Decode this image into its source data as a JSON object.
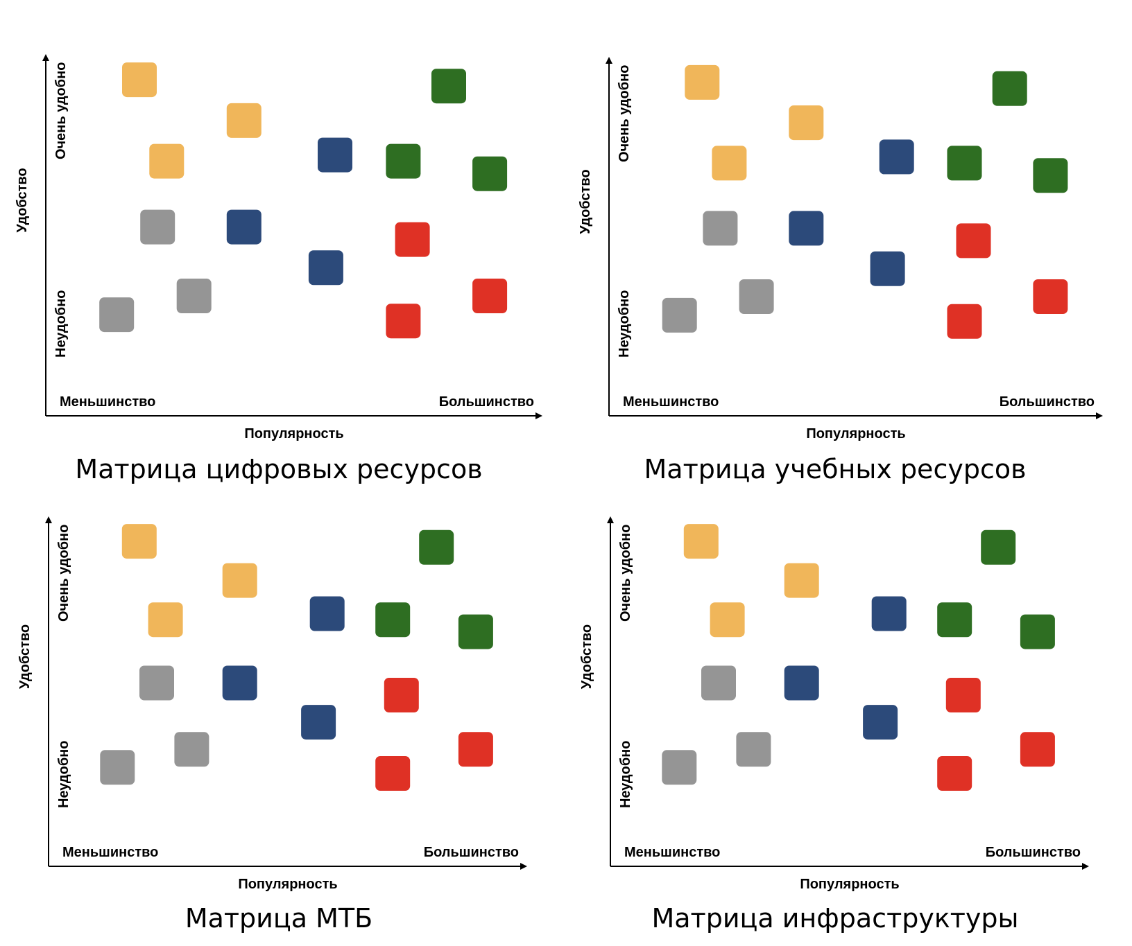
{
  "colors": {
    "yellow": "#F0B65A",
    "green": "#2E6E22",
    "blue": "#2C4A7A",
    "gray": "#959595",
    "red": "#DF3125",
    "axis": "#000000"
  },
  "chart_data": [
    {
      "type": "scatter",
      "title": "Матрица цифровых ресурсов",
      "xlabel": "Популярность",
      "ylabel": "Удобство",
      "x_low_label": "Меньшинство",
      "x_high_label": "Большинство",
      "y_low_label": "Неудобно",
      "y_high_label": "Очень удобно",
      "xlim": [
        0,
        100
      ],
      "ylim": [
        0,
        100
      ],
      "grid": false,
      "series": [
        {
          "name": "yellow",
          "color": "yellow",
          "points": [
            {
              "x": 16,
              "y": 94
            },
            {
              "x": 39,
              "y": 81
            },
            {
              "x": 22,
              "y": 68
            }
          ]
        },
        {
          "name": "green",
          "color": "green",
          "points": [
            {
              "x": 84,
              "y": 92
            },
            {
              "x": 74,
              "y": 68
            },
            {
              "x": 93,
              "y": 64
            }
          ]
        },
        {
          "name": "blue",
          "color": "blue",
          "points": [
            {
              "x": 59,
              "y": 70
            },
            {
              "x": 39,
              "y": 47
            },
            {
              "x": 57,
              "y": 34
            }
          ]
        },
        {
          "name": "gray",
          "color": "gray",
          "points": [
            {
              "x": 20,
              "y": 47
            },
            {
              "x": 28,
              "y": 25
            },
            {
              "x": 11,
              "y": 19
            }
          ]
        },
        {
          "name": "red",
          "color": "red",
          "points": [
            {
              "x": 76,
              "y": 43
            },
            {
              "x": 93,
              "y": 25
            },
            {
              "x": 74,
              "y": 17
            }
          ]
        }
      ]
    },
    {
      "type": "scatter",
      "title": "Матрица учебных ресурсов",
      "xlabel": "Популярность",
      "ylabel": "Удобство",
      "x_low_label": "Меньшинство",
      "x_high_label": "Большинство",
      "y_low_label": "Неудобно",
      "y_high_label": "Очень удобно",
      "xlim": [
        0,
        100
      ],
      "ylim": [
        0,
        100
      ],
      "grid": false,
      "series": [
        {
          "name": "yellow",
          "color": "yellow",
          "points": [
            {
              "x": 16,
              "y": 94
            },
            {
              "x": 39,
              "y": 81
            },
            {
              "x": 22,
              "y": 68
            }
          ]
        },
        {
          "name": "green",
          "color": "green",
          "points": [
            {
              "x": 84,
              "y": 92
            },
            {
              "x": 74,
              "y": 68
            },
            {
              "x": 93,
              "y": 64
            }
          ]
        },
        {
          "name": "blue",
          "color": "blue",
          "points": [
            {
              "x": 59,
              "y": 70
            },
            {
              "x": 39,
              "y": 47
            },
            {
              "x": 57,
              "y": 34
            }
          ]
        },
        {
          "name": "gray",
          "color": "gray",
          "points": [
            {
              "x": 20,
              "y": 47
            },
            {
              "x": 28,
              "y": 25
            },
            {
              "x": 11,
              "y": 19
            }
          ]
        },
        {
          "name": "red",
          "color": "red",
          "points": [
            {
              "x": 76,
              "y": 43
            },
            {
              "x": 93,
              "y": 25
            },
            {
              "x": 74,
              "y": 17
            }
          ]
        }
      ]
    },
    {
      "type": "scatter",
      "title": "Матрица МТБ",
      "xlabel": "Популярность",
      "ylabel": "Удобство",
      "x_low_label": "Меньшинство",
      "x_high_label": "Большинство",
      "y_low_label": "Неудобно",
      "y_high_label": "Очень удобно",
      "xlim": [
        0,
        100
      ],
      "ylim": [
        0,
        100
      ],
      "grid": false,
      "series": [
        {
          "name": "yellow",
          "color": "yellow",
          "points": [
            {
              "x": 16,
              "y": 94
            },
            {
              "x": 39,
              "y": 81
            },
            {
              "x": 22,
              "y": 68
            }
          ]
        },
        {
          "name": "green",
          "color": "green",
          "points": [
            {
              "x": 84,
              "y": 92
            },
            {
              "x": 74,
              "y": 68
            },
            {
              "x": 93,
              "y": 64
            }
          ]
        },
        {
          "name": "blue",
          "color": "blue",
          "points": [
            {
              "x": 59,
              "y": 70
            },
            {
              "x": 39,
              "y": 47
            },
            {
              "x": 57,
              "y": 34
            }
          ]
        },
        {
          "name": "gray",
          "color": "gray",
          "points": [
            {
              "x": 20,
              "y": 47
            },
            {
              "x": 28,
              "y": 25
            },
            {
              "x": 11,
              "y": 19
            }
          ]
        },
        {
          "name": "red",
          "color": "red",
          "points": [
            {
              "x": 76,
              "y": 43
            },
            {
              "x": 93,
              "y": 25
            },
            {
              "x": 74,
              "y": 17
            }
          ]
        }
      ]
    },
    {
      "type": "scatter",
      "title": "Матрица инфраструктуры",
      "xlabel": "Популярность",
      "ylabel": "Удобство",
      "x_low_label": "Меньшинство",
      "x_high_label": "Большинство",
      "y_low_label": "Неудобно",
      "y_high_label": "Очень удобно",
      "xlim": [
        0,
        100
      ],
      "ylim": [
        0,
        100
      ],
      "grid": false,
      "series": [
        {
          "name": "yellow",
          "color": "yellow",
          "points": [
            {
              "x": 16,
              "y": 94
            },
            {
              "x": 39,
              "y": 81
            },
            {
              "x": 22,
              "y": 68
            }
          ]
        },
        {
          "name": "green",
          "color": "green",
          "points": [
            {
              "x": 84,
              "y": 92
            },
            {
              "x": 74,
              "y": 68
            },
            {
              "x": 93,
              "y": 64
            }
          ]
        },
        {
          "name": "blue",
          "color": "blue",
          "points": [
            {
              "x": 59,
              "y": 70
            },
            {
              "x": 39,
              "y": 47
            },
            {
              "x": 57,
              "y": 34
            }
          ]
        },
        {
          "name": "gray",
          "color": "gray",
          "points": [
            {
              "x": 20,
              "y": 47
            },
            {
              "x": 28,
              "y": 25
            },
            {
              "x": 11,
              "y": 19
            }
          ]
        },
        {
          "name": "red",
          "color": "red",
          "points": [
            {
              "x": 76,
              "y": 43
            },
            {
              "x": 93,
              "y": 25
            },
            {
              "x": 74,
              "y": 17
            }
          ]
        }
      ]
    }
  ]
}
